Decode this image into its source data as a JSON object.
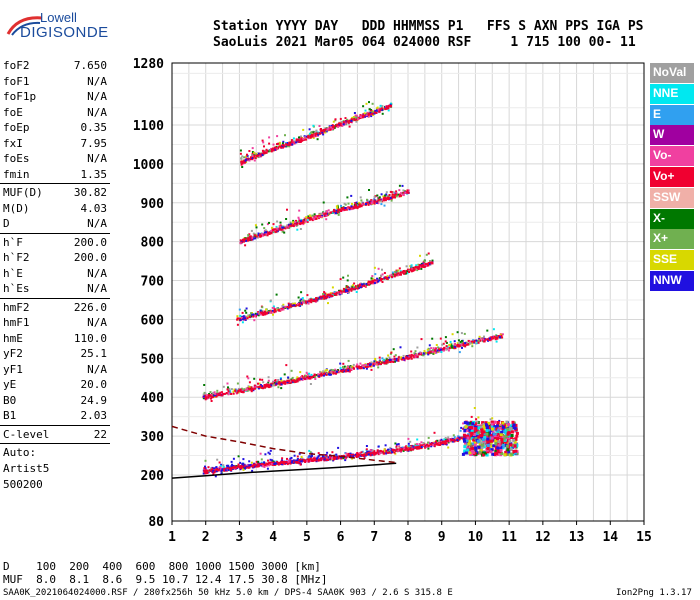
{
  "logo": {
    "line1": "Lowell",
    "line2": "DIGISONDE"
  },
  "header": {
    "line1": "Station YYYY DAY   DDD HHMMSS P1   FFS S AXN PPS IGA PS",
    "line2": "SaoLuis 2021 Mar05 064 024000 RSF     1 715 100 00- 11"
  },
  "params": {
    "group1": [
      {
        "k": "foF2",
        "v": "7.650"
      },
      {
        "k": "foF1",
        "v": "N/A"
      },
      {
        "k": "foF1p",
        "v": "N/A"
      },
      {
        "k": "foE",
        "v": "N/A"
      },
      {
        "k": "foEp",
        "v": "0.35"
      },
      {
        "k": "fxI",
        "v": "7.95"
      },
      {
        "k": "foEs",
        "v": "N/A"
      },
      {
        "k": "fmin",
        "v": "1.35"
      }
    ],
    "group2": [
      {
        "k": "MUF(D)",
        "v": "30.82"
      },
      {
        "k": "M(D)",
        "v": "4.03"
      },
      {
        "k": "D",
        "v": "N/A"
      }
    ],
    "group3": [
      {
        "k": "h`F",
        "v": "200.0"
      },
      {
        "k": "h`F2",
        "v": "200.0"
      },
      {
        "k": "h`E",
        "v": "N/A"
      },
      {
        "k": "h`Es",
        "v": "N/A"
      }
    ],
    "group4": [
      {
        "k": "hmF2",
        "v": "226.0"
      },
      {
        "k": "hmF1",
        "v": "N/A"
      },
      {
        "k": "hmE",
        "v": "110.0"
      },
      {
        "k": "yF2",
        "v": "25.1"
      },
      {
        "k": "yF1",
        "v": "N/A"
      },
      {
        "k": "yE",
        "v": "20.0"
      },
      {
        "k": "B0",
        "v": "24.9"
      },
      {
        "k": "B1",
        "v": "2.03"
      }
    ],
    "group5": [
      {
        "k": "C-level",
        "v": "22"
      }
    ],
    "auto": [
      "Auto:",
      "Artist5",
      "500200"
    ]
  },
  "legend": [
    {
      "label": "NoVal",
      "color": "#a0a0a0"
    },
    {
      "label": "NNE",
      "color": "#00e8f0"
    },
    {
      "label": "E",
      "color": "#30a0f0"
    },
    {
      "label": "W",
      "color": "#a000a0"
    },
    {
      "label": "Vo-",
      "color": "#f040a0"
    },
    {
      "label": "Vo+",
      "color": "#f00030"
    },
    {
      "label": "SSW",
      "color": "#f0b0a8"
    },
    {
      "label": "X-",
      "color": "#007800"
    },
    {
      "label": "X+",
      "color": "#70b050"
    },
    {
      "label": "SSE",
      "color": "#d8d800"
    },
    {
      "label": "NNW",
      "color": "#2010e0"
    }
  ],
  "dmuf": {
    "d_line": "D    100  200  400  600  800 1000 1500 3000 [km]",
    "muf_line": "MUF  8.0  8.1  8.6  9.5 10.7 12.4 17.5 30.8 [MHz]"
  },
  "footer": {
    "left": "SAA0K_2021064024000.RSF / 280fx256h 50 kHz 5.0 km / DPS-4 SAA0K 903 / 2.6 S 315.8 E",
    "right": "Ion2Png 1.3.17"
  },
  "chart_data": {
    "type": "scatter",
    "xlabel": "",
    "ylabel": "",
    "xlim": [
      1,
      15
    ],
    "ylim": [
      80,
      1280
    ],
    "x_ticks": [
      "1",
      "2",
      "3",
      "4",
      "5",
      "6",
      "7",
      "8",
      "9",
      "10",
      "11",
      "12",
      "13",
      "14",
      "15"
    ],
    "y_ticks": [
      "80",
      "200",
      "300",
      "400",
      "500",
      "600",
      "700",
      "800",
      "900",
      "1000",
      "1100",
      "1280"
    ],
    "grid": true,
    "traces": [
      {
        "name": "1-hop",
        "color": "#e01040",
        "points": [
          [
            1.9,
            210
          ],
          [
            3,
            222
          ],
          [
            4,
            232
          ],
          [
            5,
            240
          ],
          [
            6,
            248
          ],
          [
            7,
            258
          ],
          [
            8,
            270
          ],
          [
            9,
            285
          ],
          [
            10,
            305
          ],
          [
            11,
            300
          ]
        ]
      },
      {
        "name": "2-hop",
        "color": "#e01040",
        "points": [
          [
            1.9,
            402
          ],
          [
            3,
            418
          ],
          [
            4,
            435
          ],
          [
            5,
            452
          ],
          [
            6,
            470
          ],
          [
            7,
            488
          ],
          [
            8,
            505
          ],
          [
            9,
            525
          ],
          [
            10,
            545
          ],
          [
            10.8,
            560
          ]
        ]
      },
      {
        "name": "3-hop",
        "color": "#e01040",
        "points": [
          [
            2.9,
            602
          ],
          [
            4,
            625
          ],
          [
            5,
            648
          ],
          [
            6,
            672
          ],
          [
            7,
            700
          ],
          [
            8,
            728
          ],
          [
            8.7,
            748
          ]
        ]
      },
      {
        "name": "4-hop",
        "color": "#e01040",
        "points": [
          [
            3,
            802
          ],
          [
            4,
            830
          ],
          [
            5,
            858
          ],
          [
            6,
            884
          ],
          [
            7,
            905
          ],
          [
            8,
            930
          ]
        ]
      },
      {
        "name": "5-hop",
        "color": "#e01040",
        "points": [
          [
            3,
            1005
          ],
          [
            4,
            1040
          ],
          [
            5,
            1070
          ],
          [
            6,
            1105
          ],
          [
            7,
            1140
          ],
          [
            7.5,
            1160
          ]
        ]
      }
    ],
    "profile_curves": [
      {
        "name": "true-height",
        "color": "#000000",
        "points": [
          [
            1,
            192
          ],
          [
            2,
            198
          ],
          [
            3,
            205
          ],
          [
            4,
            210
          ],
          [
            5,
            215
          ],
          [
            6,
            220
          ],
          [
            7,
            226
          ],
          [
            7.65,
            230
          ]
        ]
      },
      {
        "name": "model",
        "color": "#800000",
        "dashed": true,
        "points": [
          [
            1,
            325
          ],
          [
            2,
            300
          ],
          [
            3,
            285
          ],
          [
            4,
            268
          ],
          [
            5,
            255
          ],
          [
            6,
            248
          ],
          [
            7,
            238
          ],
          [
            7.65,
            232
          ]
        ]
      }
    ]
  }
}
